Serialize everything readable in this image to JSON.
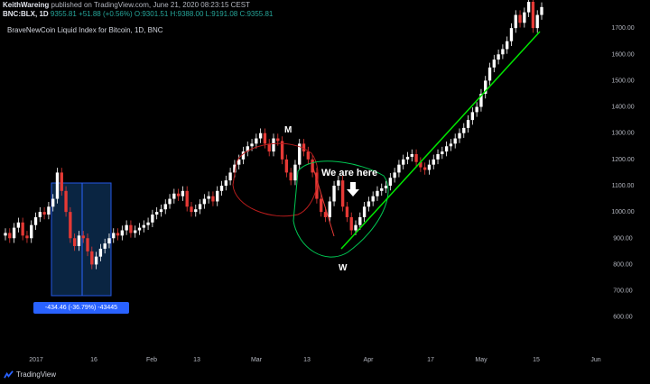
{
  "header": {
    "author": "KeithWareing",
    "published_text": "published on TradingView.com, June 21, 2020 08:23:15 CEST",
    "symbol": "BNC:BLX, 1D",
    "last": "9355.81",
    "change": "+51.88 (+0.56%)",
    "ohlc": "O:9301.51 H:9388.00 L:9191.08 C:9355.81"
  },
  "chart_title": "BraveNewCoin Liquid Index for Bitcoin, 1D, BNC",
  "annotations": {
    "m_label": "M",
    "w_label": "W",
    "note": "We are here",
    "measure": "-434.46 (-36.79%) -43445"
  },
  "footer": {
    "brand": "TradingView"
  },
  "colors": {
    "up": "#ffffff",
    "down": "#e53935",
    "trend": "#00e600",
    "measure_fill": "#0c2a4a",
    "measure_border": "#2962ff"
  },
  "chart_data": {
    "type": "candlestick",
    "y_ticks": [
      "1700.00",
      "1600.00",
      "1500.00",
      "1400.00",
      "1300.00",
      "1200.00",
      "1100.00",
      "1000.00",
      "900.00",
      "800.00",
      "700.00",
      "600.00"
    ],
    "x_ticks": [
      "2017",
      "16",
      "Feb",
      "13",
      "Mar",
      "13",
      "Apr",
      "17",
      "May",
      "15",
      "Jun"
    ],
    "ylim": [
      520,
      1800
    ],
    "closes": [
      920,
      900,
      940,
      960,
      910,
      900,
      950,
      980,
      1000,
      990,
      1020,
      1050,
      1150,
      1080,
      1000,
      900,
      870,
      910,
      900,
      850,
      800,
      830,
      860,
      880,
      900,
      920,
      910,
      930,
      950,
      920,
      930,
      940,
      950,
      960,
      990,
      1000,
      1010,
      1030,
      1050,
      1070,
      1060,
      1080,
      1020,
      1000,
      1010,
      1030,
      1050,
      1060,
      1040,
      1080,
      1100,
      1120,
      1150,
      1180,
      1200,
      1230,
      1250,
      1260,
      1280,
      1300,
      1260,
      1230,
      1280,
      1270,
      1200,
      1150,
      1120,
      1180,
      1260,
      1230,
      1200,
      1150,
      1050,
      1000,
      980,
      1040,
      1100,
      1120,
      1020,
      980,
      930,
      950,
      980,
      1020,
      1040,
      1060,
      1080,
      1090,
      1100,
      1130,
      1150,
      1180,
      1200,
      1210,
      1220,
      1190,
      1170,
      1160,
      1180,
      1200,
      1220,
      1230,
      1250,
      1260,
      1280,
      1300,
      1320,
      1350,
      1380,
      1400,
      1450,
      1500,
      1550,
      1580,
      1600,
      1620,
      1650,
      1700,
      1750,
      1720,
      1760,
      1800,
      1700,
      1750,
      1780
    ]
  }
}
